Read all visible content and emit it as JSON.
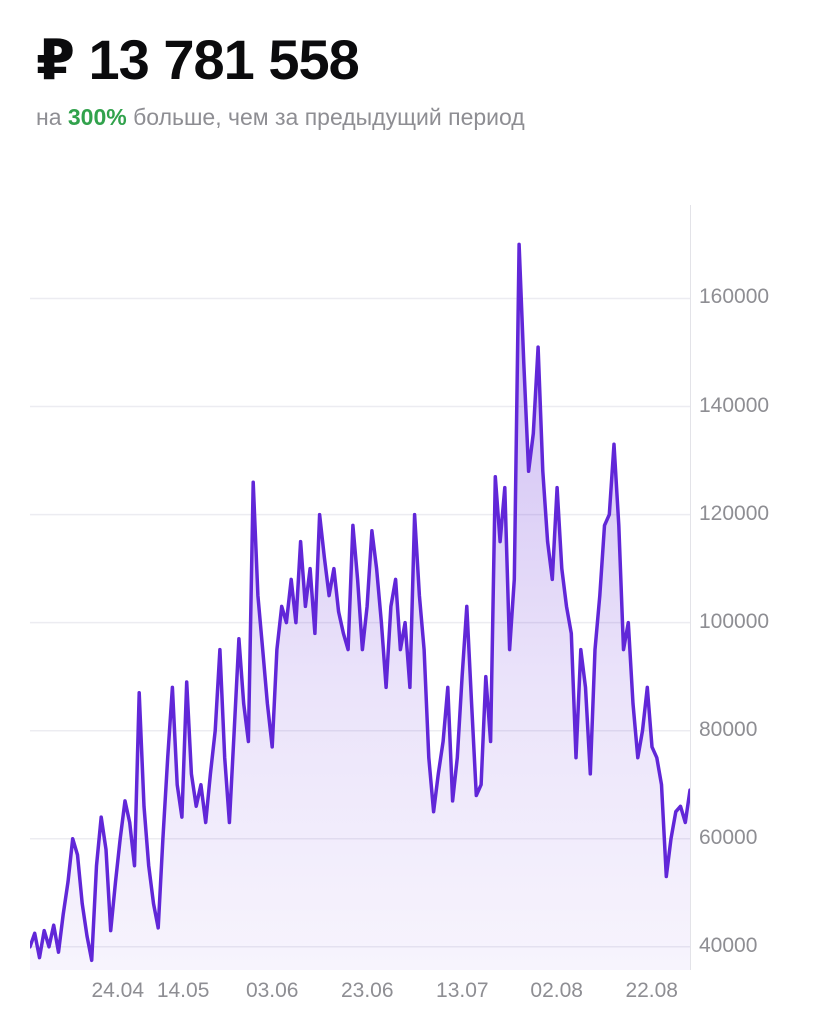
{
  "header": {
    "amount": "₽ 13 781 558",
    "subtitle_prefix": "на ",
    "subtitle_percent": "300%",
    "subtitle_suffix": " больше, чем за предыдущий период"
  },
  "colors": {
    "line": "#6127d8",
    "percent_green": "#31a24c",
    "axis_text": "#8e8e93",
    "gridline": "#ececf1"
  },
  "chart_data": {
    "type": "area",
    "title": "₽ 13 781 558",
    "subtitle": "на 300% больше, чем за предыдущий период",
    "xlabel": "",
    "ylabel": "",
    "legend": [],
    "grid": "horizontal",
    "y_axis_side": "right",
    "y_ticks": [
      40000,
      60000,
      80000,
      100000,
      120000,
      140000,
      160000
    ],
    "ylim": [
      35700,
      177300
    ],
    "x_labels": [
      {
        "text": "24.04",
        "pos": 0.133
      },
      {
        "text": "14.05",
        "pos": 0.232
      },
      {
        "text": "03.06",
        "pos": 0.367
      },
      {
        "text": "23.06",
        "pos": 0.511
      },
      {
        "text": "13.07",
        "pos": 0.655
      },
      {
        "text": "02.08",
        "pos": 0.798
      },
      {
        "text": "22.08",
        "pos": 0.942
      }
    ],
    "values": [
      40000,
      42500,
      38000,
      43000,
      40000,
      44000,
      39000,
      46000,
      52000,
      60000,
      57000,
      48000,
      42000,
      37500,
      55000,
      64000,
      58000,
      43000,
      52000,
      60000,
      67000,
      63000,
      55000,
      87000,
      66000,
      55000,
      48000,
      43500,
      60000,
      75000,
      88000,
      70000,
      64000,
      89000,
      72000,
      66000,
      70000,
      63000,
      72000,
      80000,
      95000,
      75000,
      63000,
      80000,
      97000,
      85000,
      78000,
      126000,
      105000,
      95000,
      85000,
      77000,
      95000,
      103000,
      100000,
      108000,
      100000,
      115000,
      103000,
      110000,
      98000,
      120000,
      112000,
      105000,
      110000,
      102000,
      98000,
      95000,
      118000,
      108000,
      95000,
      103000,
      117000,
      110000,
      100000,
      88000,
      103000,
      108000,
      95000,
      100000,
      88000,
      120000,
      105000,
      95000,
      75000,
      65000,
      72000,
      78000,
      88000,
      67000,
      75000,
      90000,
      103000,
      85000,
      68000,
      70000,
      90000,
      78000,
      127000,
      115000,
      125000,
      95000,
      108000,
      170000,
      148000,
      128000,
      135000,
      151000,
      128000,
      115000,
      108000,
      125000,
      110000,
      103000,
      98000,
      75000,
      95000,
      88000,
      72000,
      95000,
      105000,
      118000,
      120000,
      133000,
      118000,
      95000,
      100000,
      85000,
      75000,
      80000,
      88000,
      77000,
      75000,
      70000,
      53000,
      60000,
      65000,
      66000,
      63000,
      69000
    ]
  }
}
